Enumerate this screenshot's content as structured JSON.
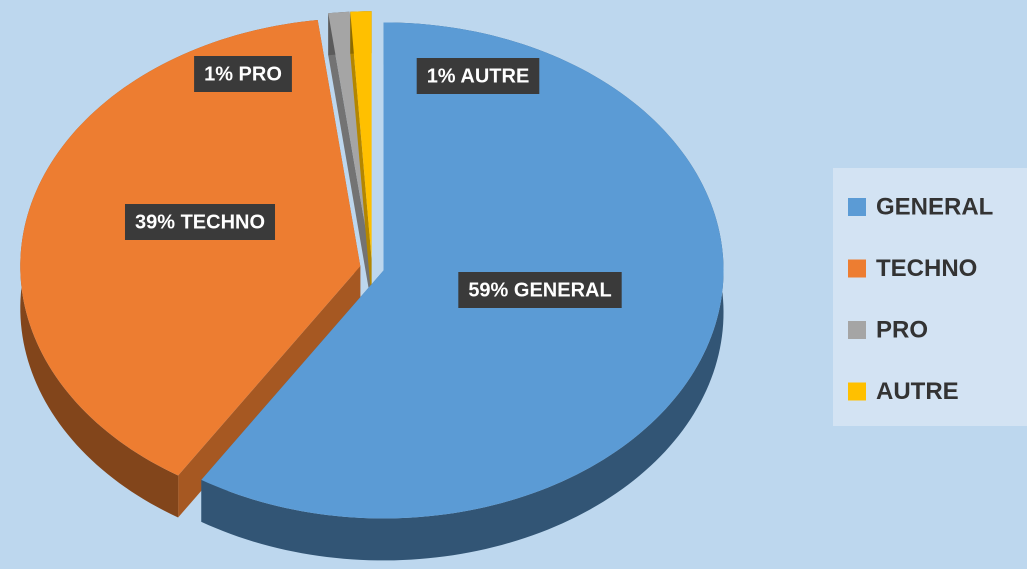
{
  "chart_data": {
    "type": "pie",
    "categories": [
      "GENERAL",
      "TECHNO",
      "PRO",
      "AUTRE"
    ],
    "values": [
      59,
      39,
      1,
      1
    ],
    "value_labels": [
      "59% GENERAL",
      "39% TECHNO",
      "1% PRO",
      "1% AUTRE"
    ],
    "colors": [
      "#5b9bd5",
      "#ed7d31",
      "#a5a5a5",
      "#ffc000"
    ],
    "legend": "right"
  }
}
